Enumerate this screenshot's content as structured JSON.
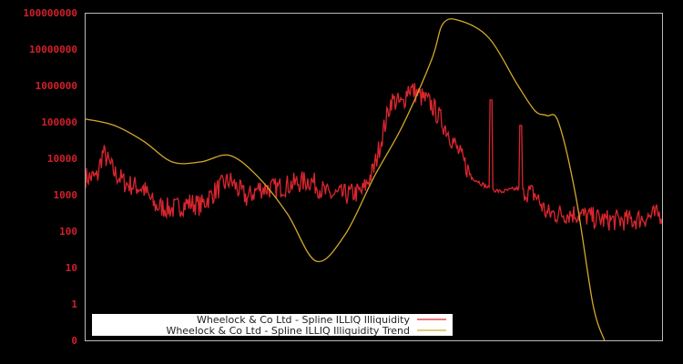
{
  "chart_data": {
    "type": "line",
    "title": "",
    "xlabel": "",
    "ylabel": "",
    "yscale": "log",
    "y_tick_labels": [
      "0",
      "1",
      "10",
      "100",
      "1000",
      "10000",
      "100000",
      "1000000",
      "10000000",
      "100000000"
    ],
    "ylim": [
      0.1,
      1000000000
    ],
    "grid": false,
    "legend_position": "lower-left",
    "series": [
      {
        "name": "Wheelock & Co Ltd - Spline ILLIQ Illiquidity",
        "color": "#d9262e",
        "x_frac": [
          0.0,
          0.02,
          0.03,
          0.05,
          0.07,
          0.1,
          0.12,
          0.15,
          0.18,
          0.2,
          0.23,
          0.25,
          0.28,
          0.3,
          0.33,
          0.36,
          0.39,
          0.42,
          0.45,
          0.48,
          0.5,
          0.53,
          0.55,
          0.56,
          0.6,
          0.63,
          0.67,
          0.7,
          0.72,
          0.75,
          0.78,
          0.8,
          0.85,
          0.9,
          0.95,
          1.0
        ],
        "values": [
          3000,
          3000,
          15000,
          4000,
          2000,
          1500,
          500,
          400,
          600,
          500,
          1500,
          2500,
          800,
          1500,
          1500,
          2000,
          2500,
          1000,
          1000,
          1200,
          5000,
          400000,
          300000,
          900000,
          300000,
          50000,
          3000,
          1500,
          1200,
          1500,
          1000,
          300,
          300,
          200,
          200,
          300
        ]
      },
      {
        "name": "Wheelock & Co Ltd - Spline ILLIQ Illiquidity Trend",
        "color": "#d4a92a",
        "x_frac": [
          0.0,
          0.05,
          0.1,
          0.15,
          0.2,
          0.25,
          0.3,
          0.35,
          0.4,
          0.45,
          0.5,
          0.55,
          0.6,
          0.62,
          0.65,
          0.7,
          0.75,
          0.78,
          0.8,
          0.82,
          0.85,
          0.88,
          0.9
        ],
        "values": [
          120000,
          80000,
          30000,
          8000,
          8000,
          12000,
          3000,
          300,
          15,
          80,
          3000,
          80000,
          5000000,
          50000000,
          60000000,
          20000000,
          1000000,
          200000,
          150000,
          100000,
          1000,
          1,
          0.1
        ]
      }
    ]
  },
  "legend": {
    "items": [
      {
        "label": "Wheelock & Co Ltd - Spline ILLIQ Illiquidity",
        "color": "#d9262e"
      },
      {
        "label": "Wheelock & Co Ltd - Spline ILLIQ Illiquidity Trend",
        "color": "#d4a92a"
      }
    ]
  }
}
